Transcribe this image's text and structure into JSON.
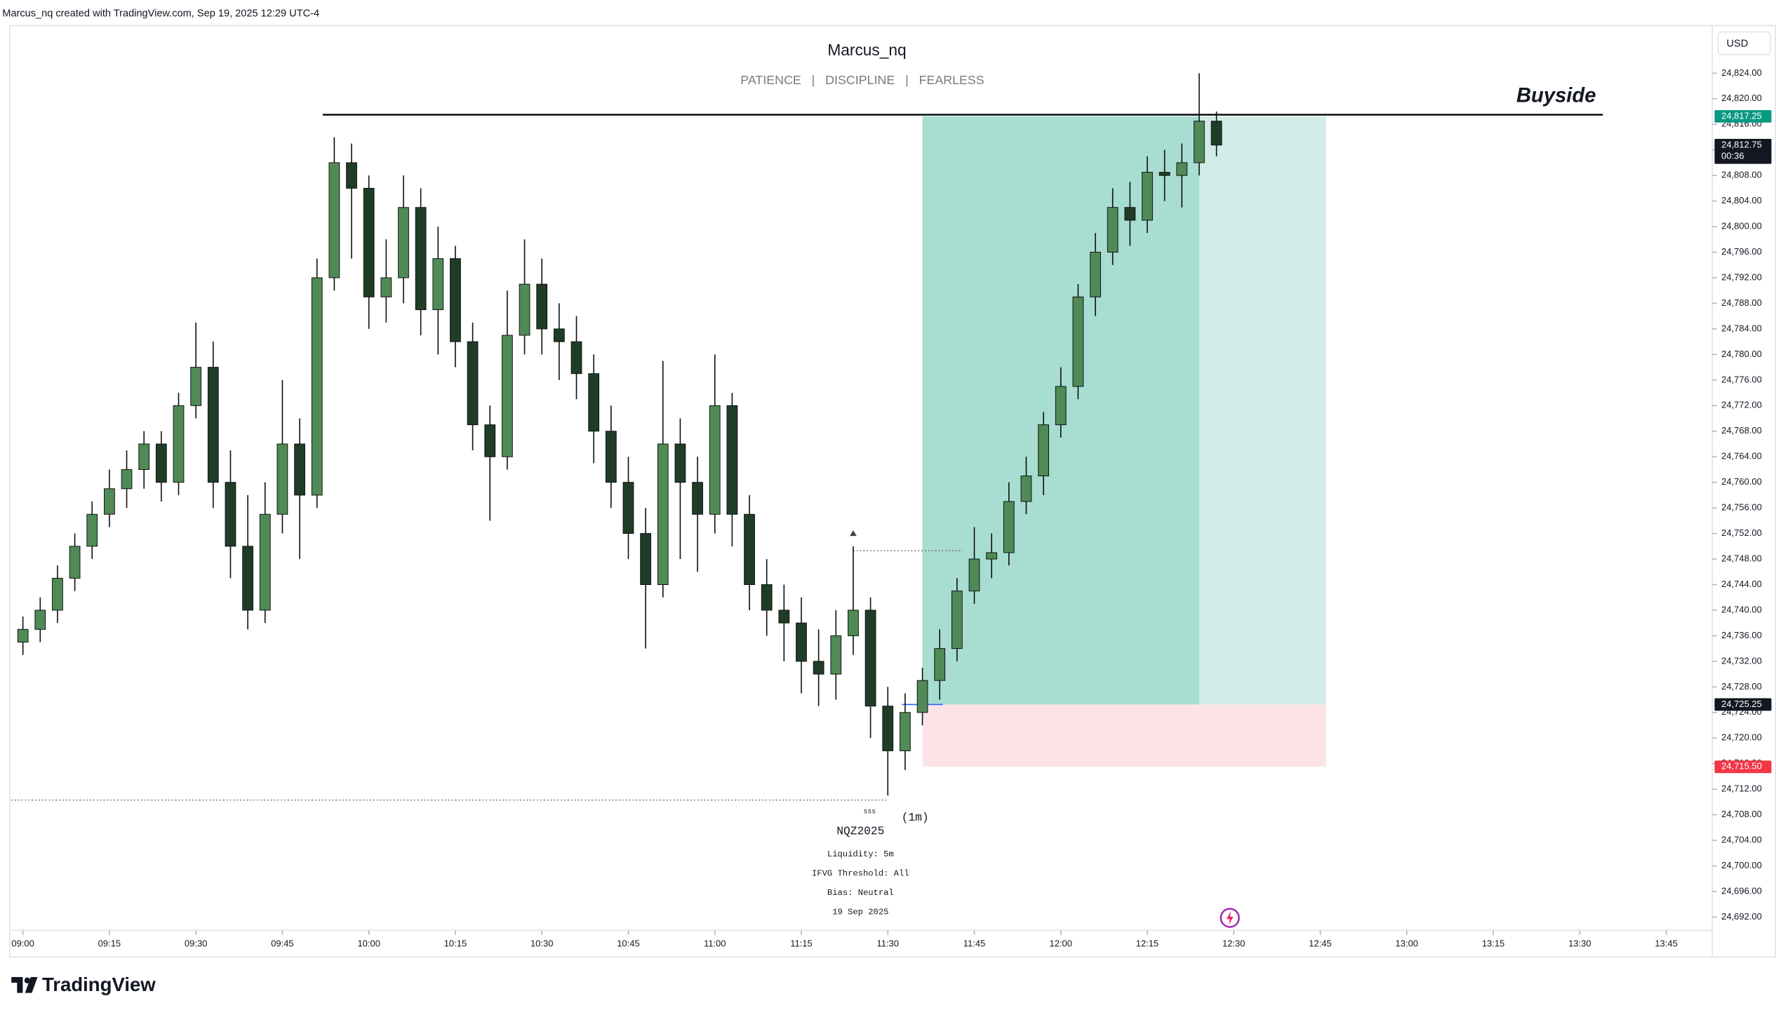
{
  "header": "Marcus_nq created with TradingView.com, Sep 19, 2025 12:29 UTC-4",
  "brand": "TradingView",
  "chart_data": {
    "type": "candlestick",
    "title": "Marcus_nq",
    "subtitle": "PATIENCE   |   DISCIPLINE   |   FEARLESS",
    "currency": "USD",
    "up_color": "#4f8a57",
    "down_color": "#1f3d26",
    "wick_color": "#111111",
    "x": [
      "09:00",
      "09:03",
      "09:06",
      "09:09",
      "09:12",
      "09:15",
      "09:18",
      "09:21",
      "09:24",
      "09:27",
      "09:30",
      "09:33",
      "09:36",
      "09:39",
      "09:42",
      "09:45",
      "09:48",
      "09:51",
      "09:54",
      "09:57",
      "10:00",
      "10:03",
      "10:06",
      "10:09",
      "10:12",
      "10:15",
      "10:18",
      "10:21",
      "10:24",
      "10:27",
      "10:30",
      "10:33",
      "10:36",
      "10:39",
      "10:42",
      "10:45",
      "10:48",
      "10:51",
      "10:54",
      "10:57",
      "11:00",
      "11:03",
      "11:06",
      "11:09",
      "11:12",
      "11:15",
      "11:18",
      "11:21",
      "11:24",
      "11:27",
      "11:30",
      "11:33",
      "11:36",
      "11:39",
      "11:42",
      "11:45",
      "11:48",
      "11:51",
      "11:54",
      "11:57",
      "12:00",
      "12:03",
      "12:06",
      "12:09",
      "12:12",
      "12:15",
      "12:18",
      "12:21",
      "12:24",
      "12:27"
    ],
    "open": [
      24735,
      24737,
      24740,
      24745,
      24750,
      24755,
      24759,
      24762,
      24766,
      24760,
      24772,
      24778,
      24760,
      24750,
      24740,
      24755,
      24766,
      24758,
      24792,
      24810,
      24806,
      24789,
      24792,
      24803,
      24787,
      24795,
      24782,
      24769,
      24764,
      24783,
      24791,
      24784,
      24782,
      24777,
      24768,
      24760,
      24752,
      24744,
      24766,
      24760,
      24755,
      24772,
      24755,
      24744,
      24740,
      24738,
      24732,
      24730,
      24736,
      24740,
      24725,
      24718,
      24724,
      24729,
      24734,
      24743,
      24748,
      24749,
      24757,
      24761,
      24769,
      24775,
      24789,
      24796,
      24803,
      24801,
      24808.5,
      24808,
      24810,
      24816.5
    ],
    "high": [
      24739,
      24742,
      24747,
      24752,
      24757,
      24762,
      24765,
      24768,
      24768,
      24774,
      24785,
      24782,
      24765,
      24758,
      24760,
      24776,
      24770,
      24795,
      24814,
      24813,
      24808,
      24798,
      24808,
      24806,
      24800,
      24797,
      24785,
      24772,
      24790,
      24798,
      24795,
      24788,
      24786,
      24780,
      24772,
      24764,
      24756,
      24779,
      24770,
      24764,
      24780,
      24774,
      24758,
      24748,
      24744,
      24742,
      24737,
      24740,
      24750,
      24742,
      24728,
      24727,
      24731,
      24737,
      24745,
      24753,
      24752,
      24760,
      24764,
      24771,
      24778,
      24791,
      24799,
      24806,
      24807,
      24811,
      24812,
      24813,
      24824,
      24818
    ],
    "low": [
      24733,
      24735,
      24738,
      24743,
      24748,
      24753,
      24756,
      24759,
      24757,
      24758,
      24770,
      24756,
      24745,
      24737,
      24738,
      24752,
      24748,
      24756,
      24790,
      24795,
      24784,
      24785,
      24788,
      24783,
      24780,
      24778,
      24765,
      24754,
      24762,
      24780,
      24780,
      24776,
      24773,
      24763,
      24756,
      24748,
      24734,
      24742,
      24748,
      24746,
      24752,
      24750,
      24740,
      24736,
      24732,
      24727,
      24725,
      24726,
      24733,
      24720,
      24711,
      24715,
      24722,
      24726,
      24732,
      24741,
      24745,
      24747,
      24755,
      24758,
      24767,
      24773,
      24786,
      24794,
      24797,
      24799,
      24804,
      24803,
      24808,
      24811
    ],
    "close": [
      24737,
      24740,
      24745,
      24750,
      24755,
      24759,
      24762,
      24766,
      24760,
      24772,
      24778,
      24760,
      24750,
      24740,
      24755,
      24766,
      24758,
      24792,
      24810,
      24806,
      24789,
      24792,
      24803,
      24787,
      24795,
      24782,
      24769,
      24764,
      24783,
      24791,
      24784,
      24782,
      24777,
      24768,
      24760,
      24752,
      24744,
      24766,
      24760,
      24755,
      24772,
      24755,
      24744,
      24740,
      24738,
      24732,
      24730,
      24736,
      24740,
      24725,
      24718,
      24724,
      24729,
      24734,
      24743,
      24748,
      24749,
      24757,
      24761,
      24769,
      24775,
      24789,
      24796,
      24803,
      24801,
      24808.5,
      24808,
      24810,
      24816.5,
      24812.75
    ],
    "xlim": [
      "08:58",
      "13:52"
    ],
    "xticks": [
      "09:00",
      "09:15",
      "09:30",
      "09:45",
      "10:00",
      "10:15",
      "10:30",
      "10:45",
      "11:00",
      "11:15",
      "11:30",
      "11:45",
      "12:00",
      "12:15",
      "12:30",
      "12:45",
      "13:00",
      "13:15",
      "13:30",
      "13:45"
    ],
    "ylim": [
      24686,
      24831
    ],
    "yticks": [
      {
        "value": 24692,
        "label": "24,692.00"
      },
      {
        "value": 24696,
        "label": "24,696.00"
      },
      {
        "value": 24700,
        "label": "24,700.00"
      },
      {
        "value": 24704,
        "label": "24,704.00"
      },
      {
        "value": 24708,
        "label": "24,708.00"
      },
      {
        "value": 24712,
        "label": "24,712.00"
      },
      {
        "value": 24716,
        "label": "24,716.00"
      },
      {
        "value": 24720,
        "label": "24,720.00"
      },
      {
        "value": 24724,
        "label": "24,724.00"
      },
      {
        "value": 24728,
        "label": "24,728.00"
      },
      {
        "value": 24732,
        "label": "24,732.00"
      },
      {
        "value": 24736,
        "label": "24,736.00"
      },
      {
        "value": 24740,
        "label": "24,740.00"
      },
      {
        "value": 24744,
        "label": "24,744.00"
      },
      {
        "value": 24748,
        "label": "24,748.00"
      },
      {
        "value": 24752,
        "label": "24,752.00"
      },
      {
        "value": 24756,
        "label": "24,756.00"
      },
      {
        "value": 24760,
        "label": "24,760.00"
      },
      {
        "value": 24764,
        "label": "24,764.00"
      },
      {
        "value": 24768,
        "label": "24,768.00"
      },
      {
        "value": 24772,
        "label": "24,772.00"
      },
      {
        "value": 24776,
        "label": "24,776.00"
      },
      {
        "value": 24780,
        "label": "24,780.00"
      },
      {
        "value": 24784,
        "label": "24,784.00"
      },
      {
        "value": 24788,
        "label": "24,788.00"
      },
      {
        "value": 24792,
        "label": "24,792.00"
      },
      {
        "value": 24796,
        "label": "24,796.00"
      },
      {
        "value": 24800,
        "label": "24,800.00"
      },
      {
        "value": 24804,
        "label": "24,804.00"
      },
      {
        "value": 24808,
        "label": "24,808.00"
      },
      {
        "value": 24812,
        "label": "24,812.00"
      },
      {
        "value": 24816,
        "label": "24,816.00"
      },
      {
        "value": 24820,
        "label": "24,820.00"
      },
      {
        "value": 24824,
        "label": "24,824.00"
      }
    ],
    "buyside": {
      "label": "Buyside",
      "price": 24817.5,
      "start": "09:52",
      "end": "13:34"
    },
    "position": {
      "start": "11:36",
      "end": "12:46",
      "filled_until": "12:24",
      "entry": 24725.25,
      "target": 24817.25,
      "stop": 24715.5,
      "profit_color": "#a8ddd1",
      "profit_light_color": "#d1ece7",
      "loss_color": "#fce4e6"
    },
    "liquidity_lines": [
      {
        "price": 24749.3,
        "start": "11:24",
        "end": "11:43"
      },
      {
        "price": 24710.3,
        "start": "08:58",
        "end": "11:30"
      }
    ],
    "liquidity_label": "sss",
    "price_labels": [
      {
        "value": 24817.25,
        "label": "24,817.25",
        "color": "#089981"
      },
      {
        "value": 24812.75,
        "label": "24,812.75",
        "color": "#131722",
        "countdown": "00:36"
      },
      {
        "value": 24725.25,
        "label": "24,725.25",
        "color": "#131722"
      },
      {
        "value": 24715.5,
        "label": "24,715.50",
        "color": "#f23645"
      }
    ],
    "timeframe": "(1m)",
    "info": [
      "NQZ2025",
      "Liquidity: 5m",
      "IFVG Threshold: All",
      "Bias: Neutral",
      "19 Sep 2025"
    ]
  }
}
